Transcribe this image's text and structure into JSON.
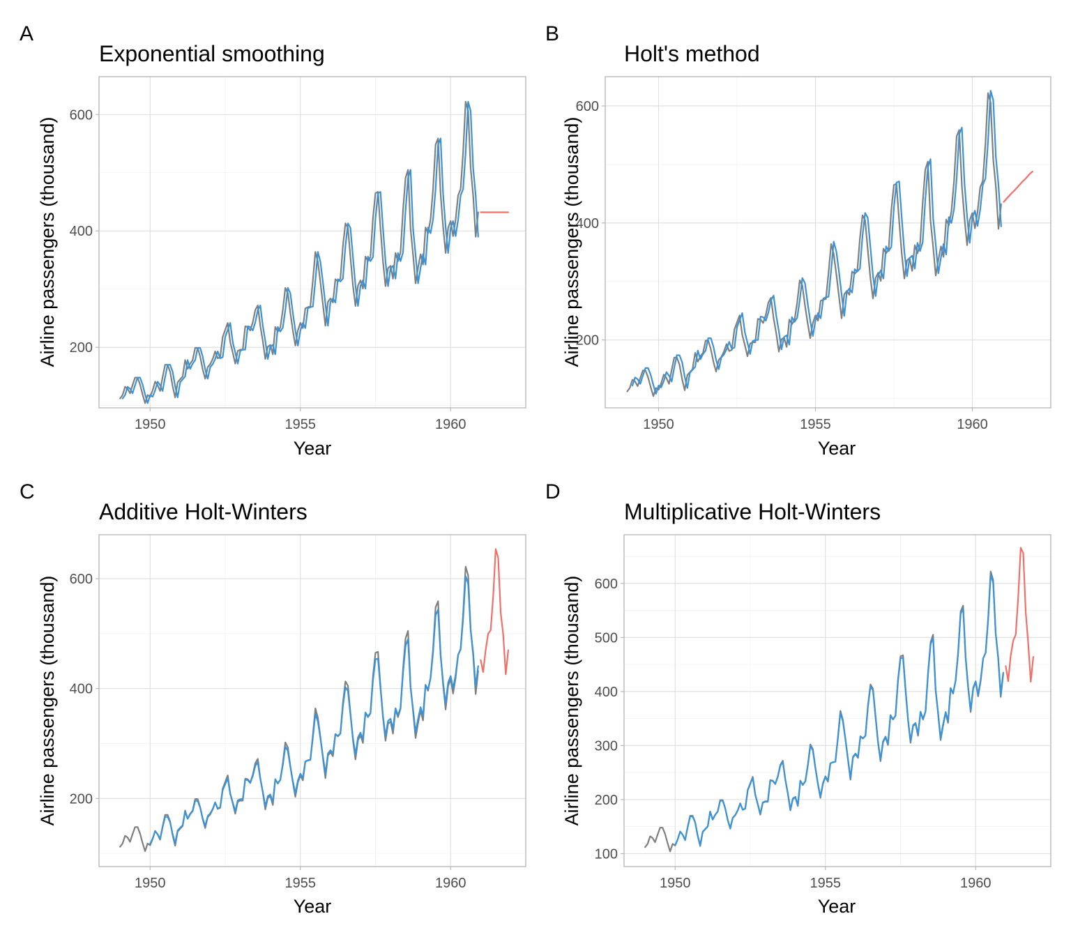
{
  "chart_data": [
    {
      "panel_label": "A",
      "type": "line",
      "title": "Exponential smoothing",
      "xlabel": "Year",
      "ylabel": "Airline passengers (thousand)",
      "xlim": [
        1948.3,
        1962.5
      ],
      "ylim": [
        96,
        665
      ],
      "x_ticks": [
        1950,
        1955,
        1960
      ],
      "y_ticks": [
        200,
        400,
        600
      ],
      "grid": true,
      "legend": "none",
      "series_colors": {
        "observed": "#7f7f7f",
        "fitted": "#3a93d8",
        "forecast": "#f07068"
      },
      "fitted": {
        "start": 1949.083,
        "lag": 1
      },
      "forecast": {
        "start": 1961.0,
        "values": [
          432,
          432,
          432,
          432,
          432,
          432,
          432,
          432,
          432,
          432,
          432,
          432
        ]
      }
    },
    {
      "panel_label": "B",
      "type": "line",
      "title": "Holt's method",
      "xlabel": "Year",
      "ylabel": "Airline passengers (thousand)",
      "xlim": [
        1948.3,
        1962.5
      ],
      "ylim": [
        84,
        650
      ],
      "x_ticks": [
        1950,
        1955,
        1960
      ],
      "y_ticks": [
        200,
        400,
        600
      ],
      "grid": true,
      "legend": "none",
      "series_colors": {
        "observed": "#7f7f7f",
        "fitted": "#3a93d8",
        "forecast": "#f07068"
      },
      "fitted": {
        "start": 1949.167,
        "lag": 1,
        "trend_adjust": 4
      },
      "forecast": {
        "start": 1961.0,
        "values": [
          436,
          441,
          446,
          451,
          455,
          460,
          465,
          470,
          474,
          479,
          484,
          488
        ]
      }
    },
    {
      "panel_label": "C",
      "type": "line",
      "title": "Additive Holt-Winters",
      "xlabel": "Year",
      "ylabel": "Airline passengers (thousand)",
      "xlim": [
        1948.3,
        1962.5
      ],
      "ylim": [
        76,
        680
      ],
      "x_ticks": [
        1950,
        1955,
        1960
      ],
      "y_ticks": [
        200,
        400,
        600
      ],
      "grid": true,
      "legend": "none",
      "series_colors": {
        "observed": "#7f7f7f",
        "fitted": "#3a93d8",
        "forecast": "#f07068"
      },
      "fitted": {
        "start": 1950.0,
        "lag": 0,
        "shrink": 0.88
      },
      "forecast": {
        "start": 1961.0,
        "values": [
          452,
          430,
          470,
          500,
          506,
          568,
          654,
          638,
          538,
          498,
          426,
          470
        ]
      }
    },
    {
      "panel_label": "D",
      "type": "line",
      "title": "Multiplicative Holt-Winters",
      "xlabel": "Year",
      "ylabel": "Airline passengers (thousand)",
      "xlim": [
        1948.3,
        1962.5
      ],
      "ylim": [
        76,
        690
      ],
      "x_ticks": [
        1950,
        1955,
        1960
      ],
      "y_ticks": [
        100,
        200,
        300,
        400,
        500,
        600
      ],
      "grid": true,
      "legend": "none",
      "series_colors": {
        "observed": "#7f7f7f",
        "fitted": "#3a93d8",
        "forecast": "#f07068"
      },
      "fitted": {
        "start": 1950.0,
        "lag": 0,
        "shrink": 0.96
      },
      "forecast": {
        "start": 1961.0,
        "values": [
          447,
          419,
          466,
          494,
          505,
          575,
          666,
          656,
          546,
          488,
          418,
          464
        ]
      }
    }
  ],
  "observed_series": {
    "start": 1949.0,
    "frequency": 12,
    "values": [
      112,
      118,
      132,
      129,
      121,
      135,
      148,
      148,
      136,
      119,
      104,
      118,
      115,
      126,
      141,
      135,
      125,
      149,
      170,
      170,
      158,
      133,
      114,
      140,
      145,
      150,
      178,
      163,
      172,
      178,
      199,
      199,
      184,
      162,
      146,
      166,
      171,
      180,
      193,
      181,
      183,
      218,
      230,
      242,
      209,
      191,
      172,
      194,
      196,
      196,
      236,
      235,
      229,
      243,
      264,
      272,
      237,
      211,
      180,
      201,
      204,
      188,
      235,
      227,
      234,
      264,
      302,
      293,
      259,
      229,
      203,
      229,
      242,
      233,
      267,
      269,
      270,
      315,
      364,
      347,
      312,
      274,
      237,
      278,
      284,
      277,
      317,
      313,
      318,
      374,
      413,
      405,
      355,
      306,
      271,
      306,
      315,
      301,
      356,
      348,
      355,
      422,
      465,
      467,
      404,
      347,
      305,
      336,
      340,
      318,
      362,
      348,
      363,
      435,
      491,
      505,
      404,
      359,
      310,
      337,
      360,
      342,
      406,
      396,
      420,
      472,
      548,
      559,
      463,
      407,
      362,
      405,
      417,
      391,
      419,
      461,
      472,
      535,
      622,
      606,
      508,
      461,
      390,
      432
    ]
  }
}
